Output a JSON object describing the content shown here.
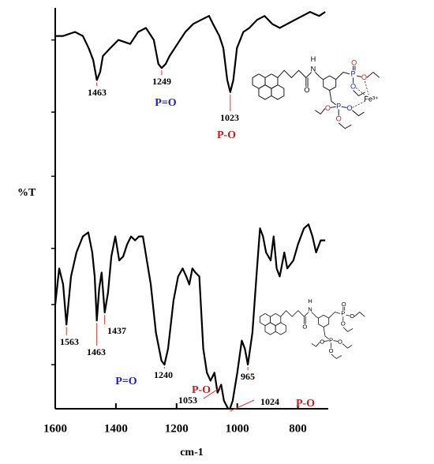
{
  "chart_data": {
    "type": "line",
    "xlabel": "cm-1",
    "ylabel": "%T",
    "xlim": [
      1600,
      700
    ],
    "xticks": [
      1600,
      1400,
      1200,
      1000,
      800
    ],
    "ylim": [
      0,
      100
    ],
    "yticks": [
      11,
      26,
      40,
      58,
      74,
      92
    ],
    "series": [
      {
        "color": "#000000",
        "x": [
          1600,
          1574,
          1535,
          1509,
          1490,
          1475,
          1463,
          1452,
          1443,
          1418,
          1392,
          1353,
          1327,
          1301,
          1275,
          1260,
          1249,
          1236,
          1223,
          1197,
          1171,
          1145,
          1119,
          1093,
          1080,
          1059,
          1046,
          1033,
          1023,
          1013,
          1001,
          980,
          960,
          935,
          910,
          885,
          860,
          835,
          810,
          785,
          760,
          730,
          710
        ],
        "values": [
          93,
          93,
          94,
          93,
          90,
          87,
          82,
          84,
          88,
          90,
          92,
          91,
          94,
          95,
          92,
          86,
          85,
          86,
          88,
          91,
          94,
          96,
          97,
          98,
          96,
          93,
          90,
          82,
          79,
          82,
          90,
          94,
          95,
          97,
          98,
          96,
          95,
          96,
          97,
          98,
          99,
          98,
          99
        ],
        "peaks": [
          1463,
          1249,
          1023
        ],
        "annotations": [
          {
            "text": "P=O",
            "color": "#1c1cc8"
          },
          {
            "text": "P-O",
            "color": "#c81c1c"
          }
        ],
        "structure": [
          "H",
          "N",
          "O",
          "P",
          "O",
          "O",
          "O",
          "P",
          "O",
          "O",
          "O",
          "Fe³⁺"
        ]
      },
      {
        "color": "#000000",
        "x": [
          1600,
          1587,
          1574,
          1563,
          1548,
          1530,
          1509,
          1491,
          1478,
          1470,
          1463,
          1455,
          1447,
          1437,
          1426,
          1415,
          1402,
          1389,
          1376,
          1363,
          1350,
          1337,
          1324,
          1311,
          1298,
          1285,
          1268,
          1250,
          1240,
          1228,
          1210,
          1195,
          1180,
          1168,
          1158,
          1148,
          1138,
          1125,
          1112,
          1100,
          1088,
          1075,
          1065,
          1053,
          1044,
          1030,
          1024,
          1015,
          1000,
          985,
          975,
          965,
          950,
          935,
          925,
          915,
          905,
          890,
          880,
          870,
          860,
          845,
          835,
          815,
          800,
          780,
          765,
          752,
          740,
          725,
          710
        ],
        "values": [
          26,
          35,
          31,
          21,
          33,
          39,
          43,
          44,
          39,
          33,
          22,
          30,
          34,
          24,
          29,
          38,
          43,
          37,
          38,
          41,
          43,
          42,
          43,
          43,
          37,
          31,
          19,
          12,
          11,
          15,
          27,
          33,
          35,
          33,
          31,
          35,
          34,
          33,
          15,
          9,
          7,
          9,
          4,
          6,
          2,
          0,
          0,
          2,
          9,
          17,
          15,
          11,
          19,
          35,
          45,
          43,
          39,
          37,
          43,
          35,
          33,
          39,
          35,
          37,
          41,
          45,
          46,
          43,
          39,
          42,
          42
        ],
        "peaks": [
          1563,
          1463,
          1437,
          1240,
          1053,
          1024,
          965
        ],
        "annotations": [
          {
            "text": "P=O",
            "color": "#1c1cc8"
          },
          {
            "text": "P-O",
            "color": "#c81c1c"
          },
          {
            "text": "P-O",
            "color": "#c81c1c"
          }
        ],
        "structure": [
          "H",
          "N",
          "O",
          "P",
          "O",
          "O",
          "O",
          "P",
          "O",
          "O",
          "O"
        ]
      }
    ]
  }
}
